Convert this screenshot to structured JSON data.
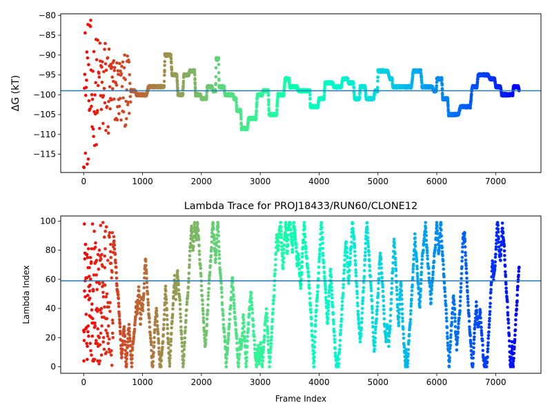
{
  "colors": {
    "refline": "#1f77b4",
    "early": "#ff0000",
    "late": "#8000ff"
  },
  "chart_data": [
    {
      "type": "scatter",
      "title": "",
      "xlabel": "",
      "ylabel": "ΔG (kT)",
      "xlim": [
        -390,
        7770
      ],
      "ylim": [
        -119.6,
        -79.6
      ],
      "xticks": [
        0,
        1000,
        2000,
        3000,
        4000,
        5000,
        6000,
        7000
      ],
      "yticks": [
        -115,
        -110,
        -105,
        -100,
        -95,
        -90,
        -85,
        -80
      ],
      "reference_line": -99,
      "colormap": "rainbow (reversed over frame index: red early → violet late)",
      "approx_frame_count": 7400,
      "trace_outline": [
        [
          0,
          -85
        ],
        [
          80,
          -100
        ],
        [
          160,
          -105
        ],
        [
          300,
          -100
        ],
        [
          500,
          -98
        ],
        [
          700,
          -99
        ],
        [
          900,
          -100
        ],
        [
          1100,
          -98
        ],
        [
          1300,
          -98
        ],
        [
          1380,
          -90
        ],
        [
          1500,
          -95
        ],
        [
          1600,
          -100
        ],
        [
          1700,
          -95
        ],
        [
          1800,
          -94
        ],
        [
          1900,
          -100
        ],
        [
          2000,
          -101
        ],
        [
          2100,
          -98
        ],
        [
          2200,
          -99
        ],
        [
          2250,
          -91
        ],
        [
          2300,
          -98
        ],
        [
          2400,
          -100
        ],
        [
          2500,
          -100
        ],
        [
          2550,
          -101
        ],
        [
          2600,
          -104
        ],
        [
          2680,
          -108.5
        ],
        [
          2800,
          -106
        ],
        [
          2950,
          -100
        ],
        [
          3050,
          -99
        ],
        [
          3150,
          -105
        ],
        [
          3300,
          -100
        ],
        [
          3420,
          -96
        ],
        [
          3500,
          -98
        ],
        [
          3650,
          -99
        ],
        [
          3800,
          -99
        ],
        [
          3850,
          -103
        ],
        [
          4000,
          -101
        ],
        [
          4100,
          -97
        ],
        [
          4250,
          -98
        ],
        [
          4400,
          -96
        ],
        [
          4500,
          -97
        ],
        [
          4600,
          -101
        ],
        [
          4700,
          -98
        ],
        [
          4800,
          -101
        ],
        [
          4950,
          -99
        ],
        [
          5000,
          -94
        ],
        [
          5200,
          -96
        ],
        [
          5250,
          -98
        ],
        [
          5400,
          -98
        ],
        [
          5600,
          -94
        ],
        [
          5750,
          -98
        ],
        [
          5950,
          -99
        ],
        [
          6000,
          -96
        ],
        [
          6100,
          -101
        ],
        [
          6200,
          -105
        ],
        [
          6400,
          -103
        ],
        [
          6600,
          -98
        ],
        [
          6700,
          -95
        ],
        [
          6900,
          -96
        ],
        [
          7000,
          -98
        ],
        [
          7100,
          -100
        ],
        [
          7250,
          -100
        ],
        [
          7300,
          -98
        ],
        [
          7400,
          -99
        ]
      ]
    },
    {
      "type": "scatter",
      "title": "Lambda Trace for PROJ18433/RUN60/CLONE12",
      "xlabel": "Frame Index",
      "ylabel": "Lambda Index",
      "xlim": [
        -390,
        7770
      ],
      "ylim": [
        -4.5,
        103.5
      ],
      "xticks": [
        0,
        1000,
        2000,
        3000,
        4000,
        5000,
        6000,
        7000
      ],
      "yticks": [
        0,
        20,
        40,
        60,
        80,
        100
      ],
      "reference_line": 59,
      "colormap": "rainbow (reversed over frame index: red early → violet late)",
      "approx_frame_count": 7400,
      "lambda_range": [
        0,
        99
      ]
    }
  ]
}
